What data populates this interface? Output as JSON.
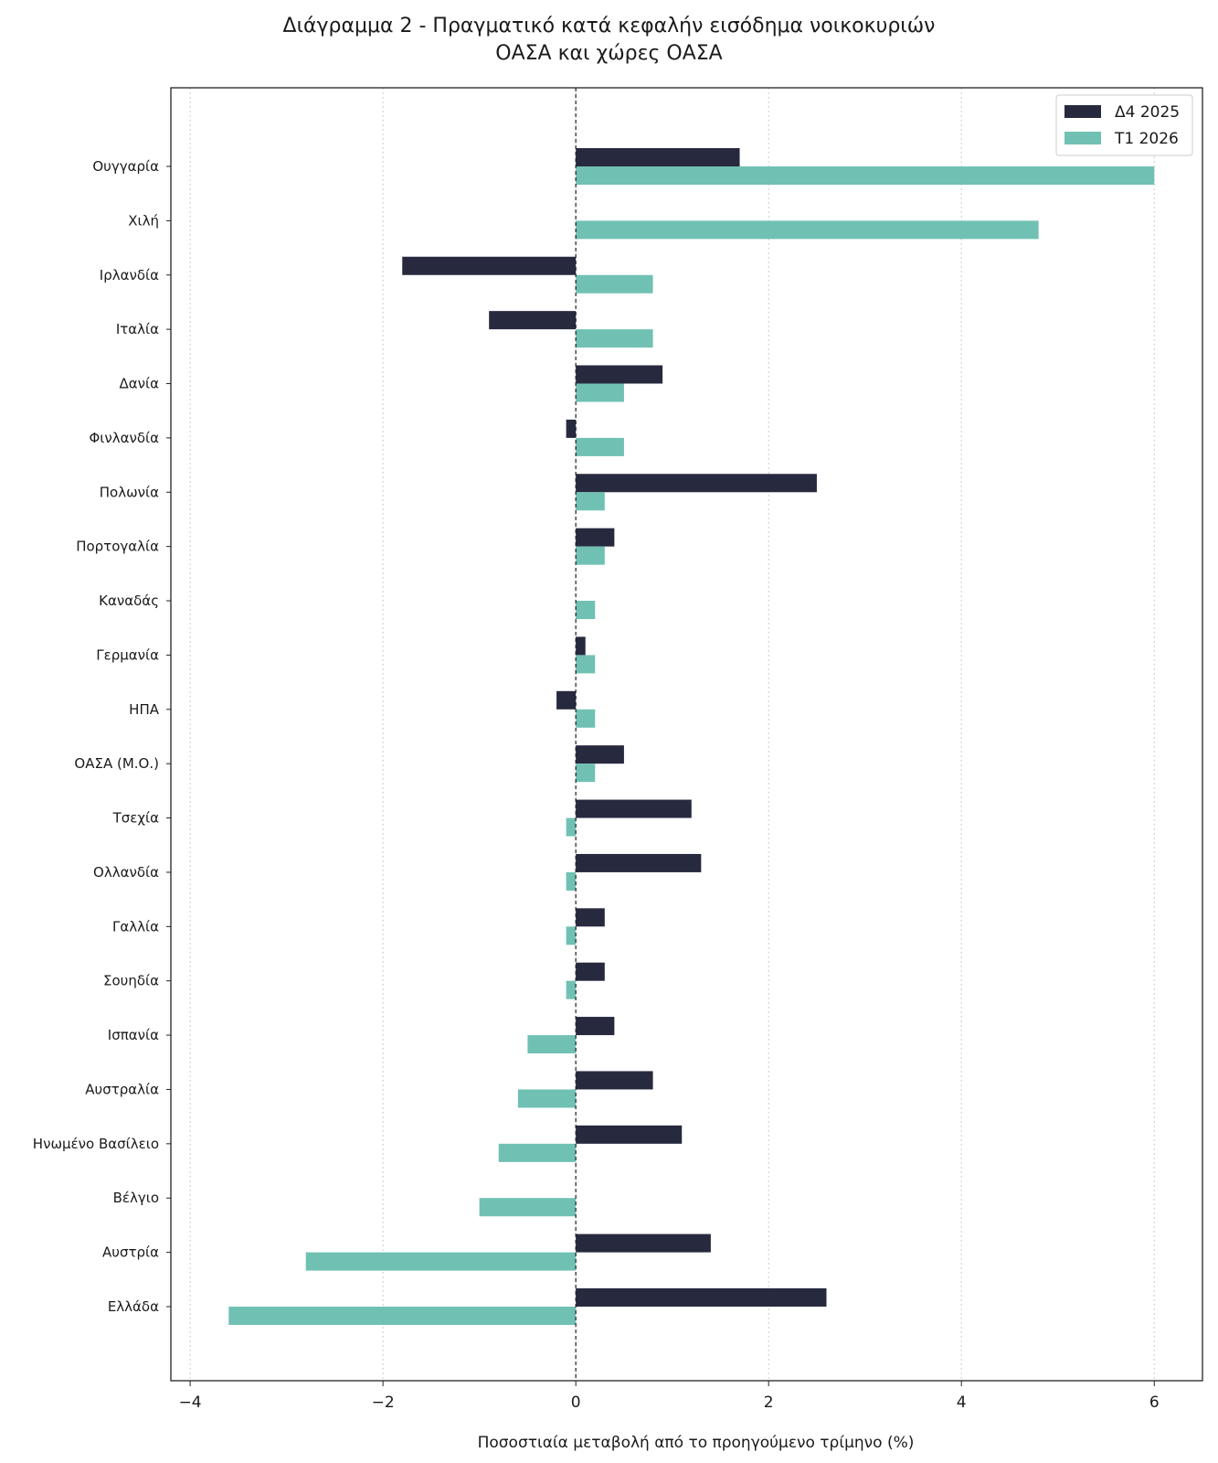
{
  "chart_data": {
    "type": "bar",
    "orientation": "horizontal",
    "title": "Διάγραμμα 2 - Πραγματικό κατά κεφαλήν εισόδημα νοικοκυριών",
    "subtitle": "ΟΑΣΑ και χώρες ΟΑΣΑ",
    "xlabel": "Ποσοστιαία μεταβολή από το προηγούμενο τρίμηνο (%)",
    "ylabel": "",
    "xlim": [
      -4.2,
      6.5
    ],
    "xticks": [
      -4,
      -2,
      0,
      2,
      4,
      6
    ],
    "xtick_labels": [
      "−4",
      "−2",
      "0",
      "2",
      "4",
      "6"
    ],
    "grid": "vertical dotted",
    "zero_line": "dashed",
    "legend_position": "top-right",
    "categories": [
      "Ουγγαρία",
      "Χιλή",
      "Ιρλανδία",
      "Ιταλία",
      "Δανία",
      "Φινλανδία",
      "Πολωνία",
      "Πορτογαλία",
      "Καναδάς",
      "Γερμανία",
      "ΗΠΑ",
      "ΟΑΣΑ (Μ.Ο.)",
      "Τσεχία",
      "Ολλανδία",
      "Γαλλία",
      "Σουηδία",
      "Ισπανία",
      "Αυστραλία",
      "Ηνωμένο Βασίλειο",
      "Βέλγιο",
      "Αυστρία",
      "Ελλάδα"
    ],
    "series": [
      {
        "name": "Δ4 2025",
        "color": "#272a3f",
        "values": [
          1.7,
          0.0,
          -1.8,
          -0.9,
          0.9,
          -0.1,
          2.5,
          0.4,
          0.0,
          0.1,
          -0.2,
          0.5,
          1.2,
          1.3,
          0.3,
          0.3,
          0.4,
          0.8,
          1.1,
          0.0,
          1.4,
          2.6
        ]
      },
      {
        "name": "Τ1 2026",
        "color": "#70c1b3",
        "values": [
          6.0,
          4.8,
          0.8,
          0.8,
          0.5,
          0.5,
          0.3,
          0.3,
          0.2,
          0.2,
          0.2,
          0.2,
          -0.1,
          -0.1,
          -0.1,
          -0.1,
          -0.5,
          -0.6,
          -0.8,
          -1.0,
          -2.8,
          -3.6
        ]
      }
    ]
  }
}
